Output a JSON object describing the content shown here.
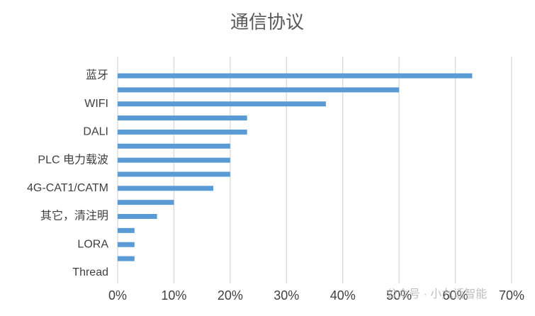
{
  "chart_data": {
    "type": "hbar",
    "title": "通信协议",
    "categories": [
      "蓝牙",
      null,
      "WIFI",
      null,
      "DALI",
      null,
      "PLC 电力载波",
      null,
      "4G-CAT1/CATM",
      null,
      "其它，清注明",
      null,
      "LORA",
      null,
      "Thread"
    ],
    "values": [
      63,
      50,
      37,
      23,
      23,
      20,
      20,
      20,
      17,
      10,
      7,
      3,
      3,
      3,
      0
    ],
    "color": "#5b9bd5",
    "xlim": [
      0,
      70
    ],
    "xticks": [
      {
        "value": 0,
        "label": "0%"
      },
      {
        "value": 10,
        "label": "10%"
      },
      {
        "value": 20,
        "label": "20%"
      },
      {
        "value": 30,
        "label": "30%"
      },
      {
        "value": 40,
        "label": "40%"
      },
      {
        "value": 50,
        "label": "50%"
      },
      {
        "value": 60,
        "label": "60%"
      },
      {
        "value": 70,
        "label": "70%"
      }
    ],
    "grid": true,
    "watermark": "公众号 · 小九话智能"
  }
}
